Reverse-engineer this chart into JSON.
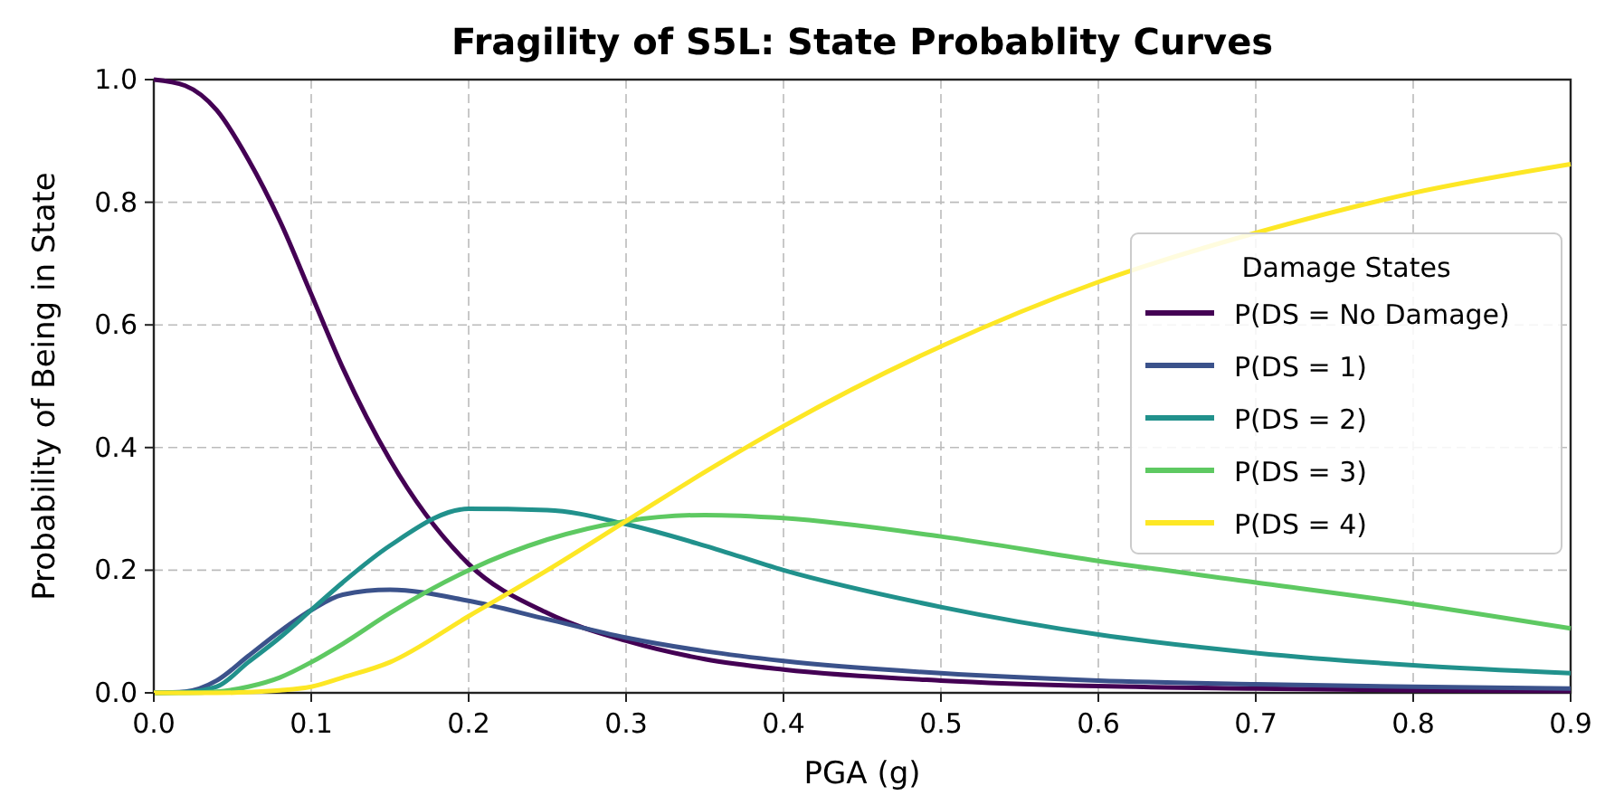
{
  "chart_data": {
    "type": "line",
    "title": "Fragility of S5L: State Probablity Curves",
    "xlabel": "PGA (g)",
    "ylabel": "Probability of Being in State",
    "legend_title": "Damage States",
    "x": [
      0,
      0.02,
      0.04,
      0.06,
      0.08,
      0.1,
      0.12,
      0.15,
      0.2,
      0.25,
      0.3,
      0.35,
      0.4,
      0.5,
      0.6,
      0.7,
      0.8,
      0.9
    ],
    "series": [
      {
        "name": "P(DS = No Damage)",
        "color": "#440154",
        "values": [
          1.0,
          0.99,
          0.95,
          0.87,
          0.77,
          0.65,
          0.53,
          0.38,
          0.21,
          0.13,
          0.085,
          0.055,
          0.038,
          0.02,
          0.011,
          0.007,
          0.004,
          0.003
        ]
      },
      {
        "name": "P(DS = 1)",
        "color": "#3b528b",
        "values": [
          0,
          0.002,
          0.02,
          0.06,
          0.1,
          0.135,
          0.16,
          0.168,
          0.15,
          0.12,
          0.09,
          0.068,
          0.052,
          0.032,
          0.02,
          0.014,
          0.01,
          0.007
        ]
      },
      {
        "name": "P(DS = 2)",
        "color": "#21918c",
        "values": [
          0,
          0.001,
          0.01,
          0.05,
          0.09,
          0.135,
          0.18,
          0.24,
          0.3,
          0.298,
          0.275,
          0.24,
          0.2,
          0.14,
          0.095,
          0.065,
          0.045,
          0.032
        ]
      },
      {
        "name": "P(DS = 3)",
        "color": "#5ec962",
        "values": [
          0,
          0,
          0.002,
          0.01,
          0.025,
          0.05,
          0.08,
          0.13,
          0.2,
          0.25,
          0.28,
          0.29,
          0.285,
          0.255,
          0.215,
          0.18,
          0.145,
          0.105
        ]
      },
      {
        "name": "P(DS = 4)",
        "color": "#fde725",
        "values": [
          0,
          0,
          0,
          0.001,
          0.004,
          0.01,
          0.025,
          0.05,
          0.125,
          0.2,
          0.28,
          0.36,
          0.435,
          0.565,
          0.67,
          0.75,
          0.815,
          0.862
        ]
      }
    ],
    "xlim": [
      0,
      0.9
    ],
    "xticks": [
      {
        "value": 0,
        "label": "0.0"
      },
      0.1,
      0.2,
      0.3,
      0.4,
      0.5,
      0.6,
      0.7,
      0.8,
      0.9
    ],
    "ylim": [
      0,
      1
    ],
    "yticks": [
      {
        "value": 0,
        "label": "0.0"
      },
      0.2,
      0.4,
      0.6,
      0.8,
      {
        "value": 1,
        "label": "1.0"
      }
    ],
    "grid": true,
    "legend": "right",
    "line_style": "solid",
    "marker": "none"
  }
}
